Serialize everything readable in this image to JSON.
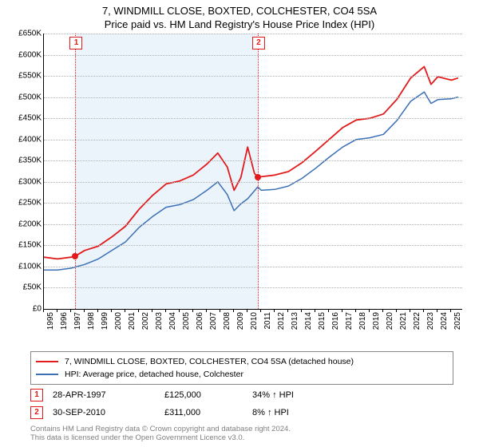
{
  "chart": {
    "title_main": "7, WINDMILL CLOSE, BOXTED, COLCHESTER, CO4 5SA",
    "title_sub": "Price paid vs. HM Land Registry's House Price Index (HPI)",
    "title_fontsize": 13,
    "background_color": "#ffffff",
    "grid_color": "#b0b0b0",
    "axis_color": "#000000",
    "shade_color": "#e3effa",
    "y": {
      "min": 0,
      "max": 650000,
      "ticks": [
        0,
        50000,
        100000,
        150000,
        200000,
        250000,
        300000,
        350000,
        400000,
        450000,
        500000,
        550000,
        600000,
        650000
      ],
      "labels": [
        "£0",
        "£50K",
        "£100K",
        "£150K",
        "£200K",
        "£250K",
        "£300K",
        "£350K",
        "£400K",
        "£450K",
        "£500K",
        "£550K",
        "£600K",
        "£650K"
      ]
    },
    "x": {
      "min": 1995,
      "max": 2025.8,
      "ticks": [
        1995,
        1996,
        1997,
        1998,
        1999,
        2000,
        2001,
        2002,
        2003,
        2004,
        2005,
        2006,
        2007,
        2008,
        2009,
        2010,
        2011,
        2012,
        2013,
        2014,
        2015,
        2016,
        2017,
        2018,
        2019,
        2020,
        2021,
        2022,
        2023,
        2024,
        2025
      ],
      "labels": [
        "1995",
        "1996",
        "1997",
        "1998",
        "1999",
        "2000",
        "2001",
        "2002",
        "2003",
        "2004",
        "2005",
        "2006",
        "2007",
        "2008",
        "2009",
        "2010",
        "2011",
        "2012",
        "2013",
        "2014",
        "2015",
        "2016",
        "2017",
        "2018",
        "2019",
        "2020",
        "2021",
        "2022",
        "2023",
        "2024",
        "2025"
      ]
    },
    "shade_range": [
      1997.32,
      2010.75
    ],
    "series": [
      {
        "key": "property",
        "label": "7, WINDMILL CLOSE, BOXTED, COLCHESTER, CO4 5SA (detached house)",
        "color": "#e11b1b",
        "line_width": 1.8,
        "data": [
          [
            1995.0,
            122000
          ],
          [
            1996.0,
            118000
          ],
          [
            1997.0,
            122000
          ],
          [
            1997.32,
            125000
          ],
          [
            1998.0,
            138000
          ],
          [
            1999.0,
            148000
          ],
          [
            2000.0,
            170000
          ],
          [
            2001.0,
            195000
          ],
          [
            2002.0,
            235000
          ],
          [
            2003.0,
            268000
          ],
          [
            2004.0,
            295000
          ],
          [
            2005.0,
            302000
          ],
          [
            2006.0,
            316000
          ],
          [
            2007.0,
            342000
          ],
          [
            2007.8,
            368000
          ],
          [
            2008.5,
            335000
          ],
          [
            2009.0,
            280000
          ],
          [
            2009.5,
            310000
          ],
          [
            2010.0,
            382000
          ],
          [
            2010.5,
            320000
          ],
          [
            2010.75,
            311000
          ],
          [
            2011.0,
            312000
          ],
          [
            2012.0,
            316000
          ],
          [
            2013.0,
            324000
          ],
          [
            2014.0,
            345000
          ],
          [
            2015.0,
            372000
          ],
          [
            2016.0,
            400000
          ],
          [
            2017.0,
            428000
          ],
          [
            2018.0,
            446000
          ],
          [
            2019.0,
            450000
          ],
          [
            2020.0,
            460000
          ],
          [
            2021.0,
            495000
          ],
          [
            2022.0,
            545000
          ],
          [
            2023.0,
            572000
          ],
          [
            2023.5,
            530000
          ],
          [
            2024.0,
            548000
          ],
          [
            2025.0,
            540000
          ],
          [
            2025.5,
            545000
          ]
        ]
      },
      {
        "key": "hpi",
        "label": "HPI: Average price, detached house, Colchester",
        "color": "#3b6fb6",
        "line_width": 1.5,
        "data": [
          [
            1995.0,
            92000
          ],
          [
            1996.0,
            92000
          ],
          [
            1997.0,
            96000
          ],
          [
            1998.0,
            105000
          ],
          [
            1999.0,
            118000
          ],
          [
            2000.0,
            138000
          ],
          [
            2001.0,
            158000
          ],
          [
            2002.0,
            192000
          ],
          [
            2003.0,
            218000
          ],
          [
            2004.0,
            240000
          ],
          [
            2005.0,
            246000
          ],
          [
            2006.0,
            258000
          ],
          [
            2007.0,
            280000
          ],
          [
            2007.8,
            300000
          ],
          [
            2008.5,
            270000
          ],
          [
            2009.0,
            232000
          ],
          [
            2009.5,
            248000
          ],
          [
            2010.0,
            260000
          ],
          [
            2010.75,
            288000
          ],
          [
            2011.0,
            280000
          ],
          [
            2012.0,
            282000
          ],
          [
            2013.0,
            290000
          ],
          [
            2014.0,
            308000
          ],
          [
            2015.0,
            332000
          ],
          [
            2016.0,
            358000
          ],
          [
            2017.0,
            382000
          ],
          [
            2018.0,
            400000
          ],
          [
            2019.0,
            404000
          ],
          [
            2020.0,
            412000
          ],
          [
            2021.0,
            445000
          ],
          [
            2022.0,
            490000
          ],
          [
            2023.0,
            512000
          ],
          [
            2023.5,
            485000
          ],
          [
            2024.0,
            494000
          ],
          [
            2025.0,
            496000
          ],
          [
            2025.5,
            500000
          ]
        ]
      }
    ],
    "sale_markers": [
      {
        "n": "1",
        "x": 1997.32,
        "y": 125000,
        "color": "#e11b1b"
      },
      {
        "n": "2",
        "x": 2010.75,
        "y": 311000,
        "color": "#e11b1b"
      }
    ]
  },
  "legend": {
    "items": [
      {
        "color": "#e11b1b",
        "label_path": "chart.series.0.label"
      },
      {
        "color": "#3b6fb6",
        "label_path": "chart.series.1.label"
      }
    ]
  },
  "sales": [
    {
      "n": "1",
      "color": "#e11b1b",
      "date": "28-APR-1997",
      "price": "£125,000",
      "hpi_diff": "34% ↑ HPI"
    },
    {
      "n": "2",
      "color": "#e11b1b",
      "date": "30-SEP-2010",
      "price": "£311,000",
      "hpi_diff": "8% ↑ HPI"
    }
  ],
  "footer": {
    "line1": "Contains HM Land Registry data © Crown copyright and database right 2024.",
    "line2": "This data is licensed under the Open Government Licence v3.0."
  }
}
